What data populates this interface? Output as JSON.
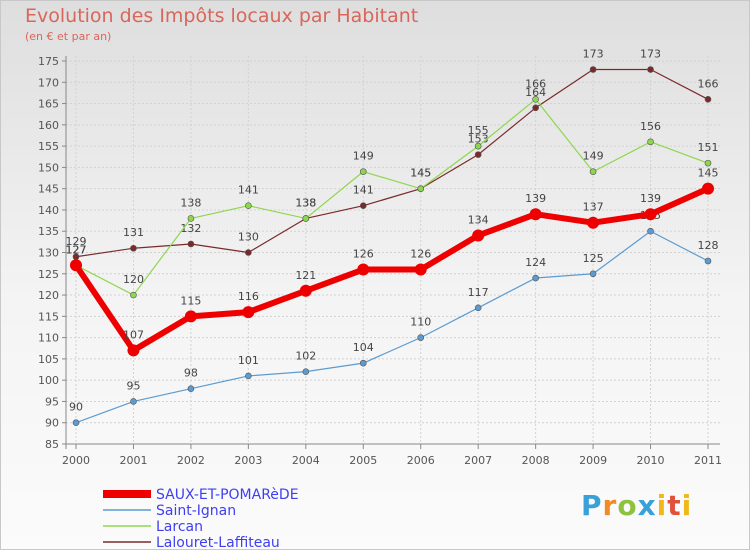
{
  "title": "Evolution des Impôts locaux par Habitant",
  "subtitle": "(en € et par an)",
  "logo_text": "Proxiti",
  "chart_data": {
    "type": "line",
    "x": [
      "2000",
      "2001",
      "2002",
      "2003",
      "2004",
      "2005",
      "2006",
      "2007",
      "2008",
      "2009",
      "2010",
      "2011"
    ],
    "ylim": [
      85,
      175
    ],
    "yticks": [
      85,
      90,
      95,
      100,
      105,
      110,
      115,
      120,
      125,
      130,
      135,
      140,
      145,
      150,
      155,
      160,
      165,
      170,
      175
    ],
    "grid": true,
    "legend_position": "bottom-left",
    "series": [
      {
        "name": "SAUX-ET-POMARèDE",
        "color": "#ee0000",
        "values": [
          127,
          107,
          115,
          116,
          121,
          126,
          126,
          134,
          139,
          137,
          139,
          145
        ]
      },
      {
        "name": "Saint-Ignan",
        "color": "#5b9bd1",
        "values": [
          90,
          95,
          98,
          101,
          102,
          104,
          110,
          117,
          124,
          125,
          135,
          128
        ]
      },
      {
        "name": "Larcan",
        "color": "#8fd64f",
        "values": [
          127,
          120,
          138,
          141,
          138,
          149,
          145,
          155,
          166,
          149,
          156,
          151
        ]
      },
      {
        "name": "Lalouret-Laffiteau",
        "color": "#7a2a2a",
        "values": [
          129,
          131,
          132,
          130,
          138,
          141,
          145,
          153,
          164,
          173,
          173,
          166
        ]
      }
    ]
  }
}
